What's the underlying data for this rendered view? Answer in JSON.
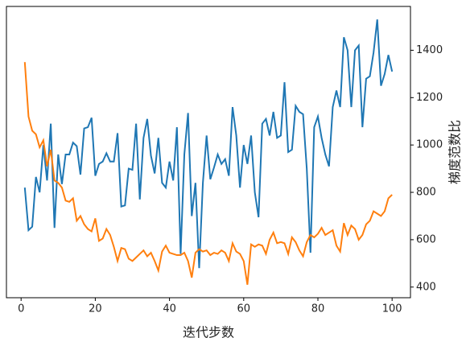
{
  "chart_data": {
    "type": "line",
    "x": [
      1,
      2,
      3,
      4,
      5,
      6,
      7,
      8,
      9,
      10,
      11,
      12,
      13,
      14,
      15,
      16,
      17,
      18,
      19,
      20,
      21,
      22,
      23,
      24,
      25,
      26,
      27,
      28,
      29,
      30,
      31,
      32,
      33,
      34,
      35,
      36,
      37,
      38,
      39,
      40,
      41,
      42,
      43,
      44,
      45,
      46,
      47,
      48,
      49,
      50,
      51,
      52,
      53,
      54,
      55,
      56,
      57,
      58,
      59,
      60,
      61,
      62,
      63,
      64,
      65,
      66,
      67,
      68,
      69,
      70,
      71,
      72,
      73,
      74,
      75,
      76,
      77,
      78,
      79,
      80,
      81,
      82,
      83,
      84,
      85,
      86,
      87,
      88,
      89,
      90,
      91,
      92,
      93,
      94,
      95,
      96,
      97,
      98,
      99,
      100
    ],
    "series": [
      {
        "color": "#1f77b4",
        "axis": "y2",
        "values": [
          820,
          640,
          655,
          865,
          800,
          1000,
          850,
          1090,
          650,
          960,
          835,
          960,
          960,
          1010,
          995,
          875,
          1070,
          1075,
          1115,
          870,
          920,
          930,
          965,
          930,
          930,
          1050,
          740,
          745,
          900,
          895,
          1090,
          770,
          1030,
          1110,
          955,
          880,
          1030,
          840,
          820,
          930,
          850,
          1075,
          540,
          960,
          1135,
          700,
          840,
          480,
          840,
          1040,
          855,
          905,
          960,
          920,
          940,
          870,
          1160,
          1040,
          820,
          1000,
          920,
          1040,
          800,
          695,
          1090,
          1110,
          1040,
          1140,
          1030,
          1040,
          1265,
          970,
          980,
          1165,
          1140,
          1130,
          900,
          545,
          1075,
          1120,
          1030,
          960,
          910,
          1160,
          1230,
          1160,
          1455,
          1400,
          1160,
          1400,
          1420,
          1075,
          1280,
          1290,
          1390,
          1530,
          1250,
          1300,
          1380,
          1310
        ]
      },
      {
        "color": "#ff7f0e",
        "axis": "y2",
        "values": [
          1350,
          1120,
          1060,
          1045,
          990,
          1020,
          910,
          980,
          850,
          840,
          820,
          765,
          760,
          775,
          680,
          700,
          665,
          645,
          635,
          690,
          595,
          605,
          645,
          620,
          570,
          510,
          565,
          560,
          520,
          510,
          525,
          540,
          555,
          530,
          545,
          510,
          470,
          550,
          575,
          545,
          540,
          535,
          535,
          545,
          510,
          440,
          545,
          560,
          550,
          555,
          535,
          545,
          540,
          555,
          545,
          510,
          585,
          550,
          540,
          510,
          410,
          580,
          570,
          580,
          575,
          540,
          600,
          630,
          585,
          590,
          585,
          540,
          610,
          590,
          555,
          530,
          590,
          620,
          610,
          625,
          650,
          620,
          630,
          640,
          575,
          550,
          670,
          620,
          660,
          645,
          600,
          620,
          665,
          680,
          720,
          710,
          700,
          720,
          775,
          790
        ]
      }
    ],
    "xlabel": "迭代步数",
    "y2label": "梯度范数比",
    "xlim": [
      -3.95,
      104.95
    ],
    "xticks": [
      0,
      20,
      40,
      60,
      80,
      100
    ],
    "y2lim": [
      355,
      1585
    ],
    "y2ticks": [
      400,
      600,
      800,
      1000,
      1200,
      1400
    ]
  }
}
